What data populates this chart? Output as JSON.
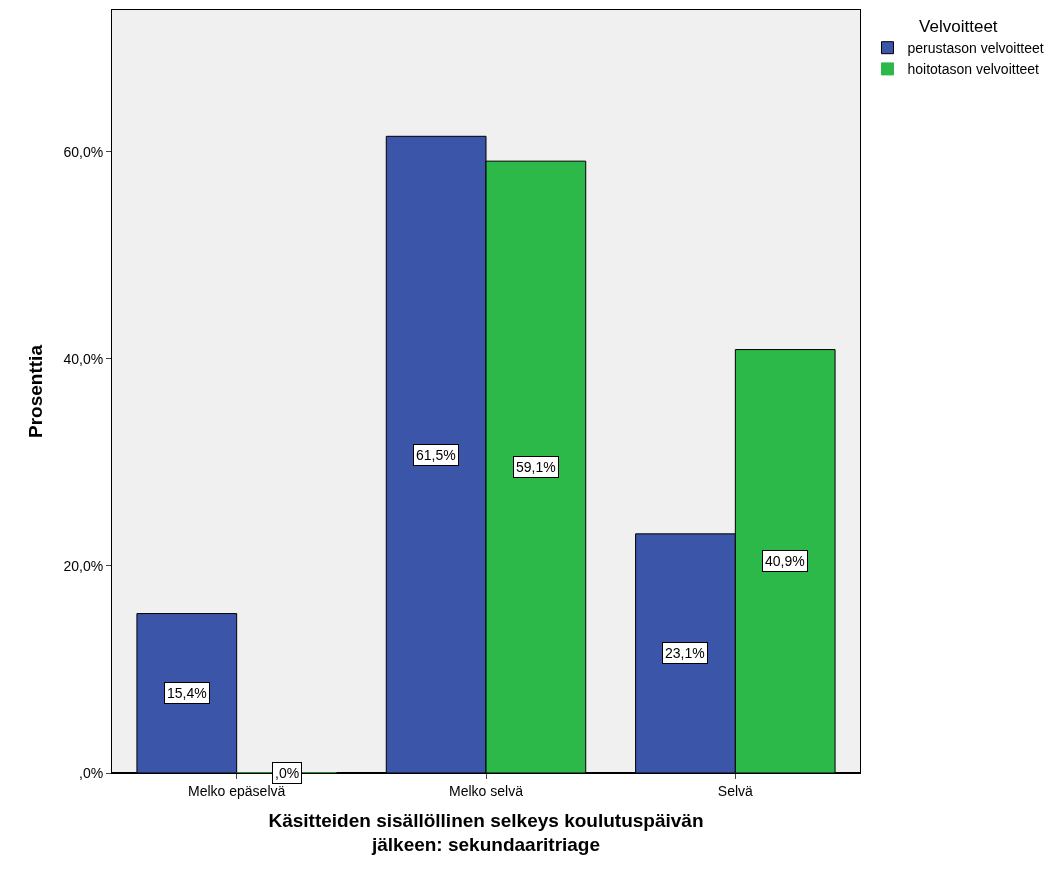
{
  "chart_data": {
    "type": "bar",
    "xlabel": "Käsitteiden sisällöllinen selkeys koulutuspäivän jälkeen: sekundaaritriage",
    "ylabel": "Prosenttia",
    "legend_title": "Velvoitteet",
    "categories": [
      "Melko epäselvä",
      "Melko selvä",
      "Selvä"
    ],
    "series": [
      {
        "name": "perustason velvoitteet",
        "color": "#3b55a8",
        "values": [
          15.4,
          61.5,
          23.1
        ],
        "value_labels": [
          "15,4%",
          "61,5%",
          "23,1%"
        ]
      },
      {
        "name": "hoitotason velvoitteet",
        "color": "#2db84a",
        "values": [
          0,
          59.1,
          40.9
        ],
        "value_labels": [
          ",0%",
          "59,1%",
          "40,9%"
        ]
      }
    ],
    "ylim": [
      0,
      73.7
    ],
    "yticks": [
      {
        "value": 0,
        "label": ",0%"
      },
      {
        "value": 20,
        "label": "20,0%"
      },
      {
        "value": 40,
        "label": "40,0%"
      },
      {
        "value": 60,
        "label": "60,0%"
      }
    ],
    "grid": false,
    "legend": "top right"
  }
}
